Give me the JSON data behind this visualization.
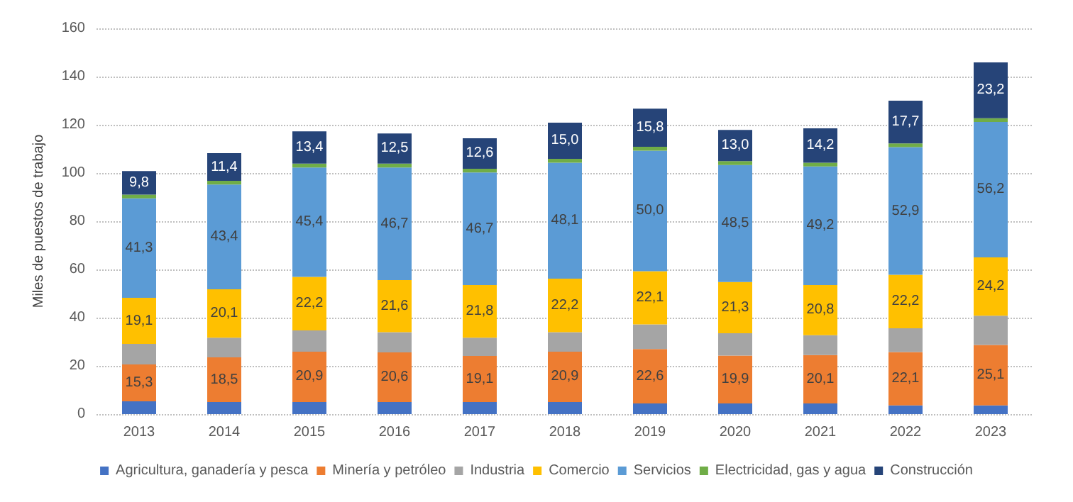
{
  "chart_data": {
    "type": "bar",
    "stacked": true,
    "ylabel": "Miles de puestos de trabajo",
    "categories": [
      "2013",
      "2014",
      "2015",
      "2016",
      "2017",
      "2018",
      "2019",
      "2020",
      "2021",
      "2022",
      "2023"
    ],
    "ylim": [
      0,
      160
    ],
    "yticks": [
      0,
      20,
      40,
      60,
      80,
      100,
      120,
      140,
      160
    ],
    "grid": "y",
    "legend": "bottom",
    "series": [
      {
        "name": "Agricultura, ganadería y pesca",
        "color": "#4472c4",
        "values": [
          5.3,
          5.0,
          5.0,
          5.0,
          5.0,
          5.0,
          4.4,
          4.4,
          4.4,
          3.6,
          3.6
        ]
      },
      {
        "name": "Minería y petróleo",
        "color": "#ed7d31",
        "values": [
          15.3,
          18.5,
          20.9,
          20.6,
          19.1,
          20.9,
          22.6,
          19.9,
          20.1,
          22.1,
          25.1
        ],
        "value_labels": [
          "15,3",
          "18,5",
          "20,9",
          "20,6",
          "19,1",
          "20,9",
          "22,6",
          "19,9",
          "20,1",
          "22,1",
          "25,1"
        ]
      },
      {
        "name": "Industria",
        "color": "#a5a5a5",
        "values": [
          8.5,
          8.2,
          8.8,
          8.4,
          7.6,
          8.1,
          10.2,
          9.2,
          8.2,
          9.9,
          12.1
        ]
      },
      {
        "name": "Comercio",
        "color": "#ffc000",
        "values": [
          19.1,
          20.1,
          22.2,
          21.6,
          21.8,
          22.2,
          22.1,
          21.3,
          20.8,
          22.2,
          24.2
        ],
        "value_labels": [
          "19,1",
          "20,1",
          "22,2",
          "21,6",
          "21,8",
          "22,2",
          "22,1",
          "21,3",
          "20,8",
          "22,2",
          "24,2"
        ]
      },
      {
        "name": "Servicios",
        "color": "#5b9bd5",
        "values": [
          41.3,
          43.4,
          45.4,
          46.7,
          46.7,
          48.1,
          50.0,
          48.5,
          49.2,
          52.9,
          56.2
        ],
        "value_labels": [
          "41,3",
          "43,4",
          "45,4",
          "46,7",
          "46,7",
          "48,1",
          "50,0",
          "48,5",
          "49,2",
          "52,9",
          "56,2"
        ]
      },
      {
        "name": "Electricidad, gas y agua",
        "color": "#70ad47",
        "values": [
          1.5,
          1.6,
          1.6,
          1.6,
          1.6,
          1.6,
          1.6,
          1.6,
          1.6,
          1.6,
          1.5
        ]
      },
      {
        "name": "Construcción",
        "color": "#264478",
        "values": [
          9.8,
          11.4,
          13.4,
          12.5,
          12.6,
          15.0,
          15.8,
          13.0,
          14.2,
          17.7,
          23.2
        ],
        "value_labels": [
          "9,8",
          "11,4",
          "13,4",
          "12,5",
          "12,6",
          "15,0",
          "15,8",
          "13,0",
          "14,2",
          "17,7",
          "23,2"
        ]
      }
    ]
  }
}
